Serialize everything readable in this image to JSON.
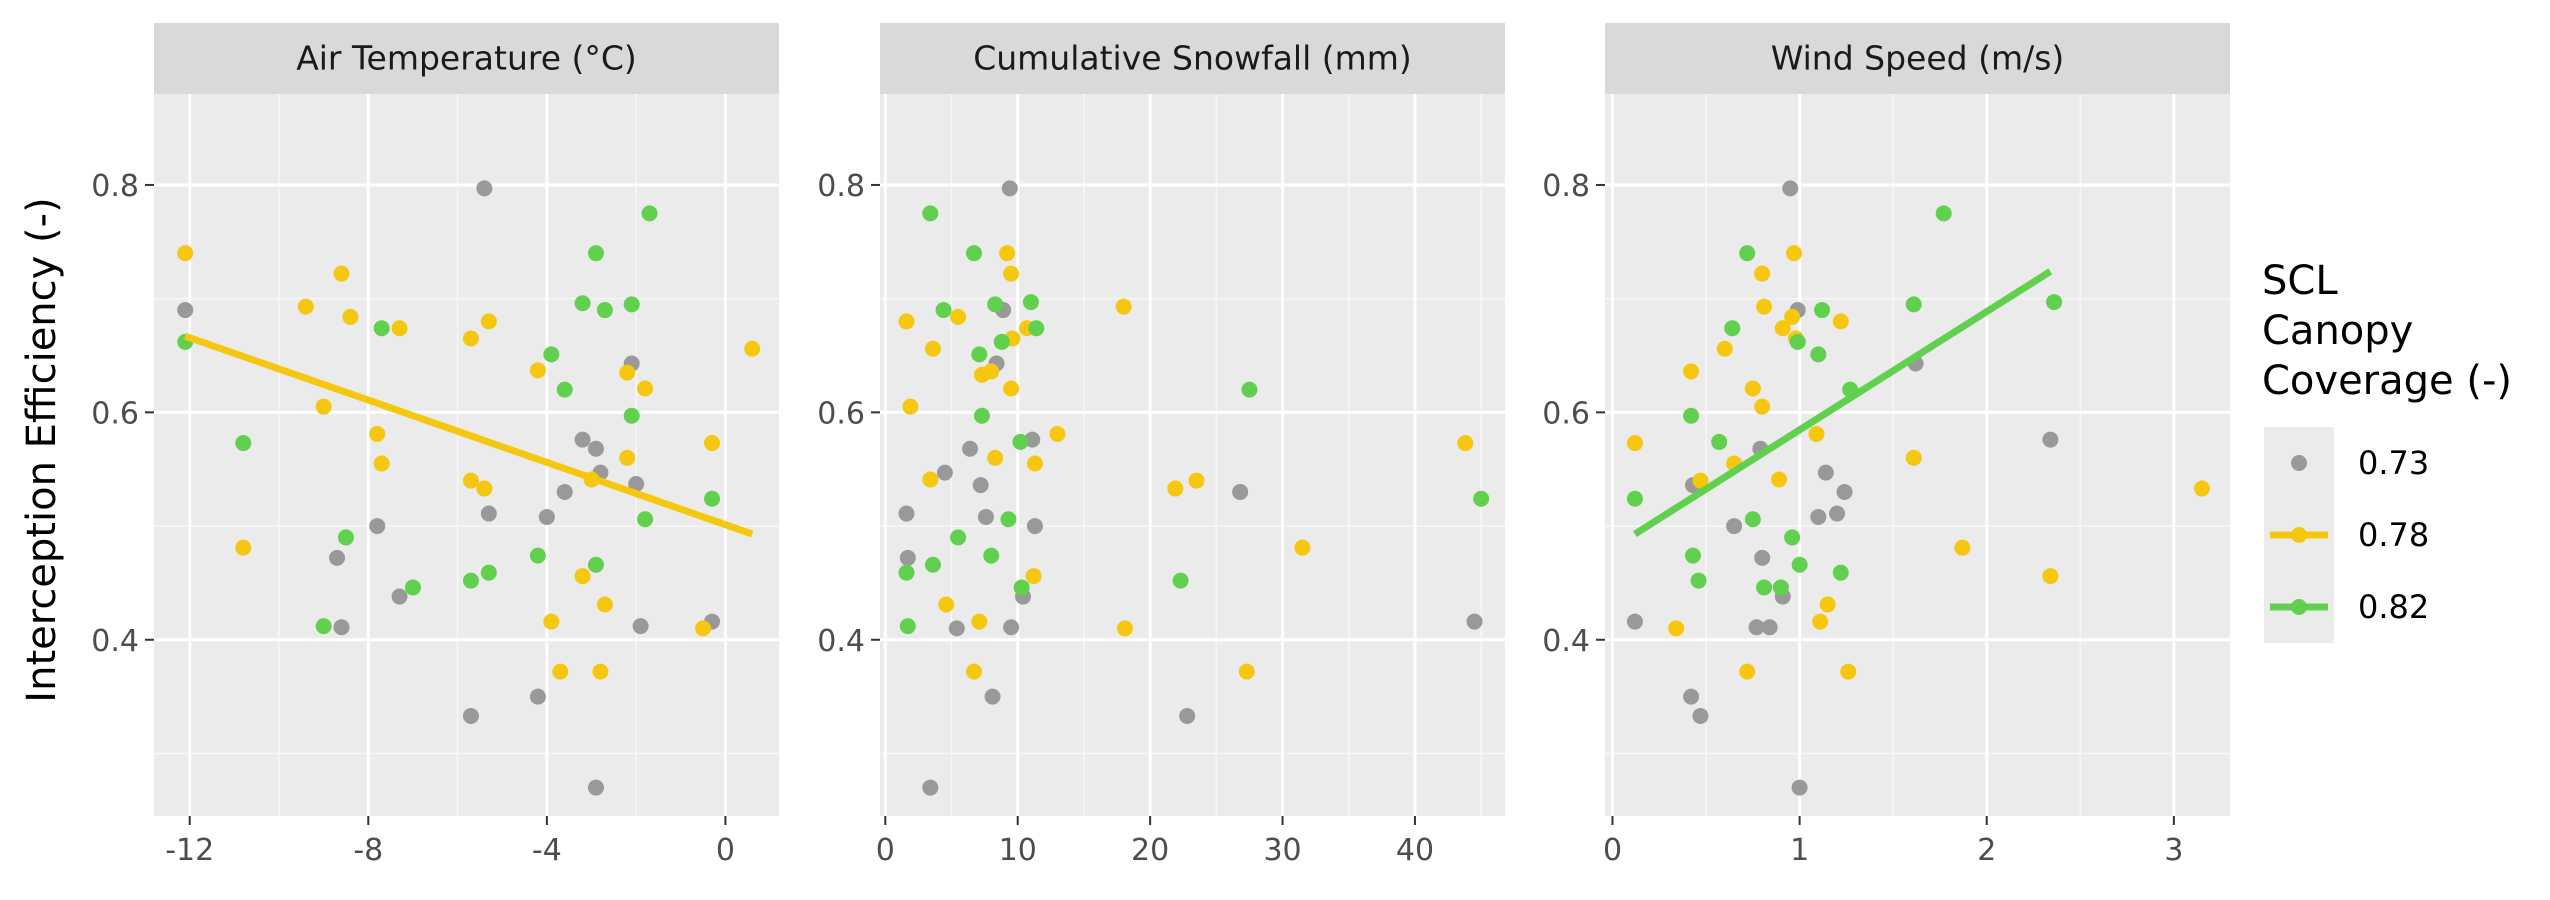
{
  "chart_data": {
    "type": "scatter",
    "ylabel": "Interception Efficiency (-)",
    "ylim": [
      0.245,
      0.88
    ],
    "y_ticks": [
      "0.4",
      "0.6",
      "0.8"
    ],
    "y_tick_values": [
      0.4,
      0.6,
      0.8
    ],
    "legend": {
      "title": "SCL\nCanopy\nCoverage (-)",
      "title_lines": [
        "SCL",
        "Canopy",
        "Coverage (-)"
      ],
      "placement": "right",
      "entries": [
        {
          "label": "0.73",
          "color": "#999999",
          "line": false
        },
        {
          "label": "0.78",
          "color": "#F5C710",
          "line": true
        },
        {
          "label": "0.82",
          "color": "#61D04F",
          "line": true
        }
      ]
    },
    "panels": [
      {
        "title": "Air Temperature (°C)",
        "xlim": [
          -12.8,
          1.2
        ],
        "x_ticks": [
          "-12",
          "-8",
          "-4",
          "0"
        ],
        "x_tick_values": [
          -12,
          -8,
          -4,
          0
        ],
        "series": [
          {
            "name": "0.73",
            "color": "#999999",
            "points": [
              [
                -12.1,
                0.69
              ],
              [
                -5.4,
                0.797
              ],
              [
                -8.7,
                0.472
              ],
              [
                -8.6,
                0.411
              ],
              [
                -7.8,
                0.5
              ],
              [
                -7.3,
                0.438
              ],
              [
                -5.7,
                0.333
              ],
              [
                -5.3,
                0.511
              ],
              [
                -4.2,
                0.35
              ],
              [
                -4.0,
                0.508
              ],
              [
                -3.6,
                0.53
              ],
              [
                -3.2,
                0.576
              ],
              [
                -2.9,
                0.568
              ],
              [
                -2.8,
                0.547
              ],
              [
                -2.9,
                0.27
              ],
              [
                -2.1,
                0.643
              ],
              [
                -2.0,
                0.537
              ],
              [
                -1.9,
                0.412
              ],
              [
                -0.3,
                0.416
              ]
            ]
          },
          {
            "name": "0.78",
            "color": "#F5C710",
            "points": [
              [
                -12.1,
                0.74
              ],
              [
                -10.8,
                0.481
              ],
              [
                -9.4,
                0.693
              ],
              [
                -9.0,
                0.605
              ],
              [
                -8.6,
                0.722
              ],
              [
                -8.4,
                0.684
              ],
              [
                -7.8,
                0.581
              ],
              [
                -7.7,
                0.555
              ],
              [
                -7.3,
                0.674
              ],
              [
                -5.7,
                0.665
              ],
              [
                -5.7,
                0.54
              ],
              [
                -5.4,
                0.533
              ],
              [
                -5.3,
                0.68
              ],
              [
                -4.2,
                0.637
              ],
              [
                -3.9,
                0.416
              ],
              [
                -3.7,
                0.372
              ],
              [
                -3.2,
                0.456
              ],
              [
                -3.0,
                0.541
              ],
              [
                -2.8,
                0.372
              ],
              [
                -2.7,
                0.431
              ],
              [
                -2.2,
                0.635
              ],
              [
                -2.2,
                0.56
              ],
              [
                -1.8,
                0.621
              ],
              [
                -0.5,
                0.41
              ],
              [
                -0.3,
                0.573
              ],
              [
                0.6,
                0.656
              ]
            ]
          },
          {
            "name": "0.82",
            "color": "#61D04F",
            "points": [
              [
                -12.1,
                0.662
              ],
              [
                -10.8,
                0.573
              ],
              [
                -9.0,
                0.412
              ],
              [
                -8.5,
                0.49
              ],
              [
                -7.7,
                0.674
              ],
              [
                -7.0,
                0.446
              ],
              [
                -5.7,
                0.452
              ],
              [
                -5.3,
                0.459
              ],
              [
                -4.2,
                0.474
              ],
              [
                -3.9,
                0.651
              ],
              [
                -3.6,
                0.62
              ],
              [
                -3.2,
                0.696
              ],
              [
                -2.9,
                0.466
              ],
              [
                -2.9,
                0.74
              ],
              [
                -2.7,
                0.69
              ],
              [
                -2.1,
                0.695
              ],
              [
                -2.1,
                0.597
              ],
              [
                -1.8,
                0.506
              ],
              [
                -1.7,
                0.775
              ],
              [
                -0.3,
                0.524
              ]
            ]
          }
        ],
        "fit_lines": [
          {
            "name": "0.78",
            "color": "#F5C710",
            "x": [
              -12.1,
              0.6
            ],
            "y": [
              0.667,
              0.493
            ]
          }
        ]
      },
      {
        "title": "Cumulative Snowfall (mm)",
        "xlim": [
          -0.4,
          46.8
        ],
        "x_ticks": [
          "0",
          "10",
          "20",
          "30",
          "40"
        ],
        "x_tick_values": [
          0,
          10,
          20,
          30,
          40
        ],
        "series": [
          {
            "name": "0.73",
            "color": "#999999",
            "points": [
              [
                1.6,
                0.511
              ],
              [
                1.7,
                0.472
              ],
              [
                3.4,
                0.27
              ],
              [
                4.5,
                0.547
              ],
              [
                5.4,
                0.41
              ],
              [
                6.4,
                0.568
              ],
              [
                7.2,
                0.536
              ],
              [
                7.6,
                0.508
              ],
              [
                8.1,
                0.35
              ],
              [
                8.4,
                0.643
              ],
              [
                8.9,
                0.69
              ],
              [
                9.4,
                0.797
              ],
              [
                9.5,
                0.411
              ],
              [
                10.4,
                0.438
              ],
              [
                11.1,
                0.576
              ],
              [
                11.3,
                0.5
              ],
              [
                22.8,
                0.333
              ],
              [
                26.8,
                0.53
              ],
              [
                44.5,
                0.416
              ]
            ]
          },
          {
            "name": "0.78",
            "color": "#F5C710",
            "points": [
              [
                1.6,
                0.68
              ],
              [
                1.9,
                0.605
              ],
              [
                3.4,
                0.541
              ],
              [
                3.6,
                0.656
              ],
              [
                4.6,
                0.431
              ],
              [
                5.5,
                0.684
              ],
              [
                6.7,
                0.372
              ],
              [
                7.1,
                0.416
              ],
              [
                7.3,
                0.633
              ],
              [
                8.0,
                0.636
              ],
              [
                8.3,
                0.56
              ],
              [
                9.2,
                0.74
              ],
              [
                9.5,
                0.722
              ],
              [
                9.5,
                0.621
              ],
              [
                9.6,
                0.665
              ],
              [
                10.7,
                0.674
              ],
              [
                11.2,
                0.456
              ],
              [
                11.3,
                0.555
              ],
              [
                13.0,
                0.581
              ],
              [
                18.0,
                0.693
              ],
              [
                18.1,
                0.41
              ],
              [
                21.9,
                0.533
              ],
              [
                23.5,
                0.54
              ],
              [
                27.3,
                0.372
              ],
              [
                31.5,
                0.481
              ],
              [
                43.8,
                0.573
              ]
            ]
          },
          {
            "name": "0.82",
            "color": "#61D04F",
            "points": [
              [
                1.6,
                0.459
              ],
              [
                1.7,
                0.412
              ],
              [
                3.4,
                0.775
              ],
              [
                3.6,
                0.466
              ],
              [
                4.4,
                0.69
              ],
              [
                5.5,
                0.49
              ],
              [
                6.7,
                0.74
              ],
              [
                7.1,
                0.651
              ],
              [
                7.3,
                0.597
              ],
              [
                8.0,
                0.474
              ],
              [
                8.3,
                0.695
              ],
              [
                8.8,
                0.662
              ],
              [
                9.3,
                0.506
              ],
              [
                10.2,
                0.574
              ],
              [
                10.3,
                0.446
              ],
              [
                11.0,
                0.697
              ],
              [
                11.4,
                0.674
              ],
              [
                22.3,
                0.452
              ],
              [
                27.5,
                0.62
              ],
              [
                45.0,
                0.524
              ]
            ]
          }
        ],
        "fit_lines": []
      },
      {
        "title": "Wind Speed (m/s)",
        "xlim": [
          -0.04,
          3.3
        ],
        "x_ticks": [
          "0",
          "1",
          "2",
          "3"
        ],
        "x_tick_values": [
          0,
          1,
          2,
          3
        ],
        "series": [
          {
            "name": "0.73",
            "color": "#999999",
            "points": [
              [
                0.12,
                0.416
              ],
              [
                0.42,
                0.35
              ],
              [
                0.43,
                0.536
              ],
              [
                0.47,
                0.333
              ],
              [
                0.65,
                0.5
              ],
              [
                0.77,
                0.411
              ],
              [
                0.79,
                0.568
              ],
              [
                0.8,
                0.472
              ],
              [
                0.84,
                0.411
              ],
              [
                0.91,
                0.438
              ],
              [
                0.95,
                0.797
              ],
              [
                0.99,
                0.69
              ],
              [
                1.0,
                0.27
              ],
              [
                1.1,
                0.508
              ],
              [
                1.14,
                0.547
              ],
              [
                1.2,
                0.511
              ],
              [
                1.24,
                0.53
              ],
              [
                1.62,
                0.643
              ],
              [
                2.34,
                0.576
              ]
            ]
          },
          {
            "name": "0.78",
            "color": "#F5C710",
            "points": [
              [
                0.12,
                0.573
              ],
              [
                0.34,
                0.41
              ],
              [
                0.42,
                0.636
              ],
              [
                0.47,
                0.54
              ],
              [
                0.6,
                0.656
              ],
              [
                0.65,
                0.555
              ],
              [
                0.72,
                0.372
              ],
              [
                0.75,
                0.621
              ],
              [
                0.8,
                0.605
              ],
              [
                0.8,
                0.722
              ],
              [
                0.81,
                0.693
              ],
              [
                0.89,
                0.541
              ],
              [
                0.91,
                0.674
              ],
              [
                0.96,
                0.684
              ],
              [
                0.97,
                0.74
              ],
              [
                0.98,
                0.665
              ],
              [
                1.09,
                0.581
              ],
              [
                1.11,
                0.416
              ],
              [
                1.15,
                0.431
              ],
              [
                1.22,
                0.68
              ],
              [
                1.26,
                0.372
              ],
              [
                1.61,
                0.56
              ],
              [
                1.87,
                0.481
              ],
              [
                2.34,
                0.456
              ],
              [
                3.15,
                0.533
              ]
            ]
          },
          {
            "name": "0.82",
            "color": "#61D04F",
            "points": [
              [
                0.12,
                0.524
              ],
              [
                0.42,
                0.597
              ],
              [
                0.43,
                0.474
              ],
              [
                0.46,
                0.452
              ],
              [
                0.57,
                0.574
              ],
              [
                0.64,
                0.674
              ],
              [
                0.72,
                0.74
              ],
              [
                0.75,
                0.506
              ],
              [
                0.81,
                0.446
              ],
              [
                0.9,
                0.446
              ],
              [
                0.96,
                0.49
              ],
              [
                0.99,
                0.662
              ],
              [
                1.0,
                0.466
              ],
              [
                1.1,
                0.651
              ],
              [
                1.12,
                0.69
              ],
              [
                1.22,
                0.459
              ],
              [
                1.27,
                0.62
              ],
              [
                1.61,
                0.695
              ],
              [
                1.77,
                0.775
              ],
              [
                2.36,
                0.697
              ]
            ]
          }
        ],
        "fit_lines": [
          {
            "name": "0.82",
            "color": "#61D04F",
            "x": [
              0.12,
              2.34
            ],
            "y": [
              0.493,
              0.724
            ]
          }
        ]
      }
    ]
  }
}
